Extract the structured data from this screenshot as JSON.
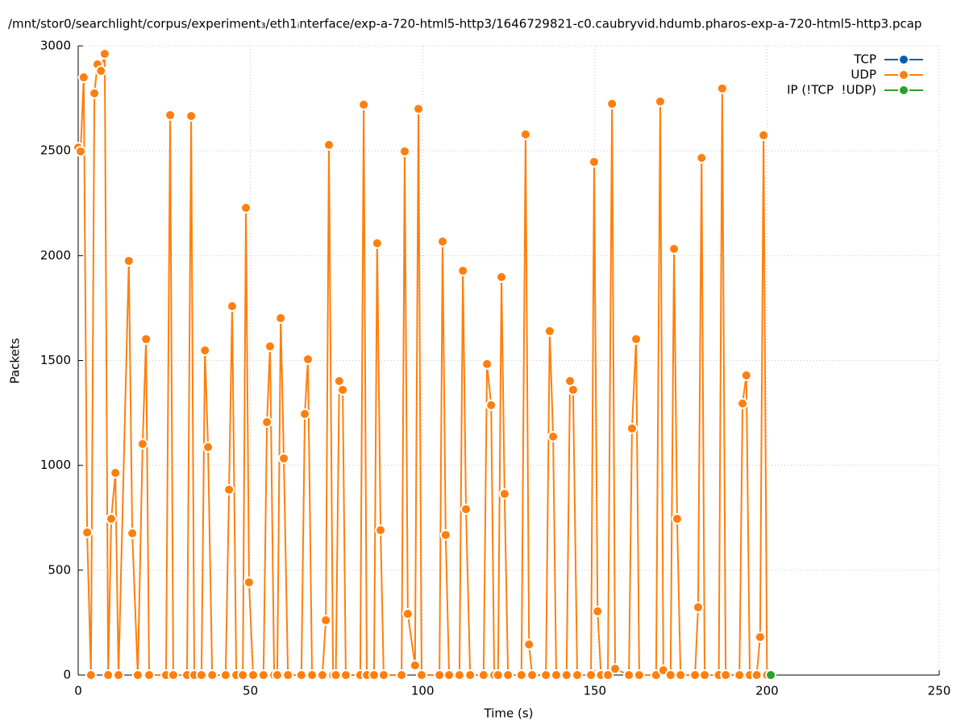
{
  "chart_data": {
    "type": "line",
    "title": "/mnt/stor0/searchlight/corpus/experiment₃/eth1ᵢnterface/exp-a-720-html5-http3/1646729821-c0.caubryvid.hdumb.pharos-exp-a-720-html5-http3.pcap",
    "xlabel": "Time (s)",
    "ylabel": "Packets",
    "xlim": [
      0,
      250
    ],
    "xticks": [
      0,
      50,
      100,
      150,
      200,
      250
    ],
    "ylim": [
      0,
      3000
    ],
    "yticks": [
      0,
      500,
      1000,
      1500,
      2000,
      2500,
      3000
    ],
    "grid": true,
    "legend": "top-right",
    "series": [
      {
        "name": "TCP",
        "color": "#0060ad",
        "x": [],
        "values": []
      },
      {
        "name": "UDP",
        "color": "#ff7f0e",
        "x": [
          0,
          0.7,
          1.6,
          2.6,
          3.7,
          4.7,
          5.6,
          6.6,
          7.7,
          8.7,
          9.6,
          10.8,
          11.7,
          14.7,
          15.7,
          17.3,
          18.7,
          19.7,
          20.6,
          25.5,
          26.7,
          27.6,
          31.6,
          32.8,
          33.7,
          35.8,
          36.8,
          37.7,
          38.9,
          42.8,
          43.8,
          44.7,
          45.9,
          47.8,
          48.7,
          49.6,
          50.8,
          53.8,
          54.8,
          55.7,
          56.9,
          57.8,
          58.8,
          59.7,
          60.9,
          64.8,
          65.8,
          66.7,
          67.9,
          70.9,
          71.9,
          72.8,
          74,
          74.8,
          75.8,
          76.8,
          77.7,
          81.9,
          82.9,
          83.8,
          85.9,
          86.8,
          87.8,
          88.7,
          93.9,
          94.8,
          95.7,
          97.8,
          98.8,
          99.7,
          104.9,
          105.8,
          106.7,
          107.7,
          110.7,
          111.7,
          112.6,
          113.8,
          117.7,
          118.7,
          119.9,
          120.8,
          121.9,
          122.9,
          123.8,
          124.8,
          128.7,
          129.9,
          130.9,
          131.8,
          135.8,
          136.9,
          137.9,
          138.8,
          141.8,
          142.8,
          143.7,
          144.9,
          148.9,
          149.8,
          150.8,
          151.8,
          153.8,
          155,
          155.9,
          159.9,
          160.8,
          162,
          162.9,
          167.8,
          169,
          169.9,
          172,
          173,
          173.9,
          174.9,
          179.1,
          180,
          181,
          181.9,
          186,
          187,
          188,
          192,
          192.9,
          194,
          195,
          197,
          198,
          199,
          200
        ],
        "values": [
          2515,
          2497,
          2850,
          680,
          0,
          2774,
          2912,
          2881,
          2962,
          0,
          745,
          964,
          0,
          1975,
          676,
          0,
          1102,
          1602,
          0,
          0,
          2670,
          0,
          0,
          2666,
          0,
          0,
          1548,
          1087,
          0,
          0,
          884,
          1759,
          0,
          0,
          2228,
          442,
          0,
          0,
          1206,
          1567,
          0,
          0,
          1702,
          1033,
          0,
          0,
          1245,
          1506,
          0,
          0,
          261,
          2528,
          0,
          0,
          1402,
          1360,
          0,
          0,
          2720,
          0,
          0,
          2059,
          691,
          0,
          0,
          2497,
          292,
          46,
          2700,
          0,
          0,
          2067,
          668,
          0,
          0,
          1928,
          791,
          0,
          0,
          1483,
          1287,
          0,
          0,
          1898,
          864,
          0,
          0,
          2578,
          146,
          0,
          0,
          1640,
          1137,
          0,
          0,
          1402,
          1360,
          0,
          0,
          2447,
          304,
          0,
          0,
          2724,
          30,
          0,
          1176,
          1602,
          0,
          0,
          2735,
          23,
          0,
          2032,
          745,
          0,
          0,
          323,
          2466,
          0,
          0,
          2797,
          0,
          0,
          1295,
          1429,
          0,
          0,
          181,
          2574,
          0
        ]
      },
      {
        "name": "IP (!TCP  !UDP)",
        "color": "#2ca02c",
        "x": [
          201.1
        ],
        "values": [
          0
        ]
      }
    ]
  }
}
